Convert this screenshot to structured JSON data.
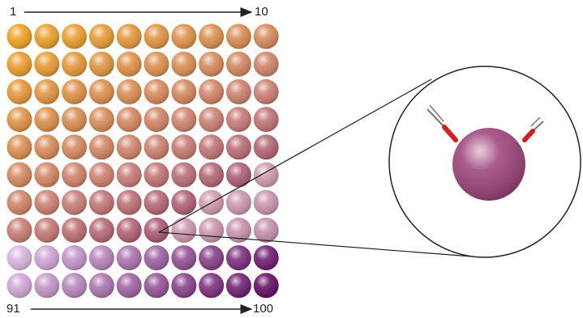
{
  "labels": {
    "top_start": "1",
    "top_end": "10",
    "bottom_start": "91",
    "bottom_end": "100"
  }
}
